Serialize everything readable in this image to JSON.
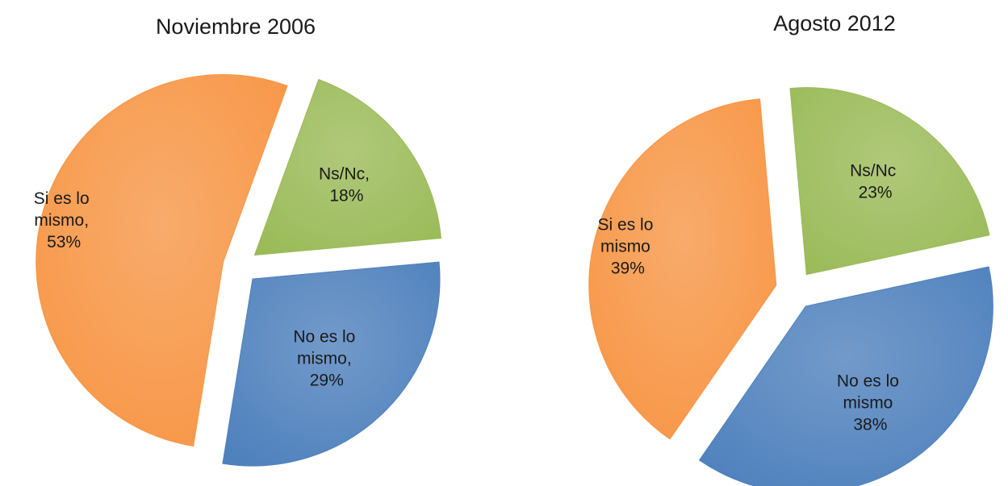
{
  "chart_data": [
    {
      "type": "pie",
      "title": "Noviembre 2006",
      "values": [
        18,
        29,
        53
      ],
      "value_labels": [
        "Ns/Nc, 18%",
        "No es lo mismo, 29%",
        "Si es lo mismo, 53%"
      ],
      "colors": [
        "#9bbb59",
        "#4f81bd",
        "#f79646"
      ]
    },
    {
      "type": "pie",
      "title": "Agosto 2012",
      "values": [
        23,
        38,
        39
      ],
      "value_labels": [
        "Ns/Nc 23%",
        "No es lo mismo 38%",
        "Si es lo mismo 39%"
      ],
      "colors": [
        "#9bbb59",
        "#4f81bd",
        "#f79646"
      ]
    }
  ]
}
